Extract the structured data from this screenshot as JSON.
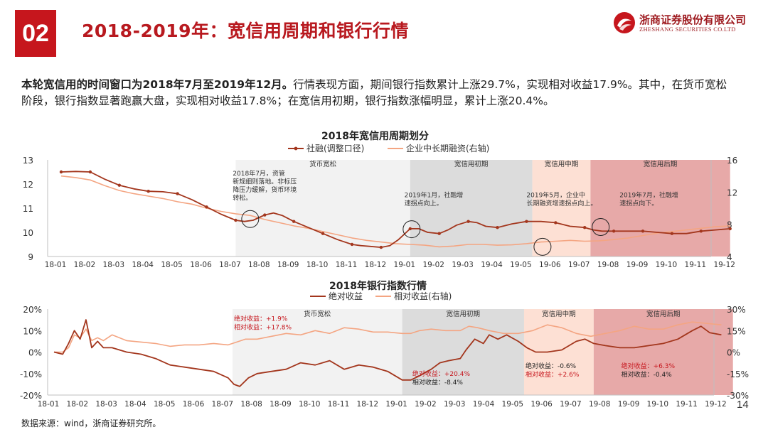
{
  "header": {
    "section_number": "02",
    "title": "2018-2019年：宽信用周期和银行行情",
    "logo_cn": "浙商证券股份有限公司",
    "logo_en": "ZHESHANG SECURITIES CO.LTD"
  },
  "summary": {
    "lead": "本轮宽信用的时间窗口为2018年7月至2019年12月。",
    "body": "行情表现方面，期间银行指数累计上涨29.7%，实现相对收益17.9%。其中，在货币宽松阶段，银行指数显著跑赢大盘，实现相对收益17.8%；在宽信用初期，银行指数涨幅明显，累计上涨20.4%。"
  },
  "colors": {
    "primary_series": "#a3361d",
    "secondary_series": "#f4a582",
    "brand_red": "#c6161d",
    "phase_easing": "#f2f2f2",
    "phase_early": "#dcdcdc",
    "phase_mid": "#fde0d4",
    "phase_late": "#e7a9a8"
  },
  "footer": {
    "source": "数据来源：wind，浙商证券研究所。",
    "page_number": "14"
  },
  "chart_data": [
    {
      "type": "line",
      "title": "2018年宽信用周期划分",
      "x_ticks": [
        "18-01",
        "18-02",
        "18-03",
        "18-04",
        "18-05",
        "18-06",
        "18-07",
        "18-08",
        "18-09",
        "18-10",
        "18-11",
        "18-12",
        "19-01",
        "19-02",
        "19-03",
        "19-04",
        "19-05",
        "19-06",
        "19-07",
        "19-08",
        "19-09",
        "19-10",
        "19-11",
        "19-12"
      ],
      "ylim": [
        9,
        13
      ],
      "yticks": [
        9,
        10,
        11,
        12,
        13
      ],
      "y2lim": [
        4,
        16
      ],
      "y2ticks": [
        4,
        8,
        12,
        16
      ],
      "grid": false,
      "legend_position": "top",
      "series": [
        {
          "name": "社融(调整口径)",
          "axis": "left",
          "markers": true,
          "x": [
            0,
            0.5,
            1,
            1.5,
            2,
            2.5,
            3,
            3.5,
            4,
            4.5,
            5,
            5.5,
            6,
            6.3,
            6.6,
            7,
            7.3,
            7.6,
            8,
            8.5,
            9,
            9.5,
            10,
            10.3,
            10.6,
            11,
            11.3,
            11.6,
            12,
            12.3,
            12.6,
            13,
            13.3,
            13.6,
            14,
            14.3,
            14.6,
            15,
            15.5,
            16,
            16.5,
            17,
            17.5,
            18,
            18.3,
            18.6,
            19,
            19.5,
            20,
            20.5,
            21,
            21.5,
            22,
            22.5,
            23
          ],
          "values": [
            12.5,
            12.52,
            12.5,
            12.2,
            11.95,
            11.8,
            11.7,
            11.68,
            11.6,
            11.35,
            11.05,
            10.75,
            10.5,
            10.45,
            10.5,
            10.72,
            10.8,
            10.7,
            10.45,
            10.2,
            9.95,
            9.7,
            9.5,
            9.45,
            9.42,
            9.38,
            9.45,
            9.7,
            10.15,
            10.15,
            10.0,
            9.95,
            10.1,
            10.3,
            10.45,
            10.4,
            10.25,
            10.2,
            10.35,
            10.45,
            10.45,
            10.4,
            10.25,
            10.2,
            10.1,
            10.05,
            10.05,
            10.05,
            10.05,
            10.0,
            9.95,
            9.95,
            10.05,
            10.1,
            10.15
          ]
        },
        {
          "name": "企业中长期融资(右轴)",
          "axis": "right",
          "markers": false,
          "x": [
            0,
            0.5,
            1,
            1.5,
            2,
            2.5,
            3,
            3.5,
            4,
            4.5,
            5,
            5.5,
            6,
            6.5,
            7,
            7.5,
            8,
            8.5,
            9,
            9.5,
            10,
            10.5,
            11,
            11.5,
            12,
            12.5,
            13,
            13.5,
            14,
            14.5,
            15,
            15.5,
            16,
            16.5,
            17,
            17.5,
            18,
            18.5,
            19,
            19.5,
            20,
            20.5,
            21,
            21.5,
            22,
            22.5,
            23
          ],
          "values": [
            14.0,
            13.8,
            13.5,
            12.8,
            12.2,
            11.8,
            11.5,
            11.2,
            10.8,
            10.5,
            10.0,
            9.6,
            9.3,
            9.1,
            8.6,
            8.2,
            7.8,
            7.5,
            7.1,
            6.7,
            6.3,
            6.0,
            5.8,
            5.6,
            5.5,
            5.4,
            5.2,
            5.3,
            5.5,
            5.5,
            5.4,
            5.45,
            5.6,
            5.8,
            5.9,
            6.0,
            5.9,
            5.95,
            6.1,
            6.3,
            6.6,
            6.9,
            7.1,
            7.3,
            7.5,
            7.7,
            7.8
          ]
        }
      ],
      "phases": [
        {
          "label": "货币宽松",
          "from": 6,
          "to": 12
        },
        {
          "label": "宽信用初期",
          "from": 12,
          "to": 16.2
        },
        {
          "label": "宽信用中期",
          "from": 16.2,
          "to": 18.2
        },
        {
          "label": "宽信用后期",
          "from": 18.2,
          "to": 23
        }
      ],
      "annotations": [
        {
          "text": "2018年7月，资管新规细则落地。非标压降压力缓解，货币环境转松。",
          "x": 5.9,
          "y": 12.35
        },
        {
          "text": "2019年1月，社融增速拐点向上。",
          "x": 11.8,
          "y": 11.45
        },
        {
          "text": "2019年5月，企业中长期融资增速拐点向上。",
          "x": 16.0,
          "y": 11.45
        },
        {
          "text": "2019年7月，社融增速拐点向下。",
          "x": 19.2,
          "y": 11.45
        }
      ],
      "highlight_circles": [
        {
          "x": 6.5,
          "y": 10.55,
          "axis": "left"
        },
        {
          "x": 12.05,
          "y": 10.13,
          "axis": "left"
        },
        {
          "x": 16.55,
          "y": 9.4,
          "axis": "left"
        },
        {
          "x": 18.55,
          "y": 10.22,
          "axis": "left"
        }
      ]
    },
    {
      "type": "line",
      "title": "2018年银行指数行情",
      "x_ticks": [
        "18-01",
        "18-02",
        "18-03",
        "18-04",
        "18-05",
        "18-06",
        "18-07",
        "18-08",
        "18-09",
        "18-10",
        "18-11",
        "18-12",
        "19-01",
        "19-02",
        "19-03",
        "19-04",
        "19-05",
        "19-06",
        "19-07",
        "19-08",
        "19-09",
        "19-10",
        "19-11",
        "19-12"
      ],
      "ylim": [
        -20,
        20
      ],
      "ytick_labels": [
        "20%",
        "10%",
        "0%",
        "-10%",
        "-20%"
      ],
      "y2lim": [
        -30,
        30
      ],
      "y2tick_labels": [
        "30%",
        "15%",
        "0%",
        "-15%",
        "-30%"
      ],
      "grid": false,
      "legend_position": "top",
      "series": [
        {
          "name": "绝对收益",
          "axis": "left",
          "x": [
            0,
            0.3,
            0.5,
            0.7,
            0.9,
            1.1,
            1.3,
            1.5,
            1.7,
            2,
            2.5,
            3,
            3.5,
            4,
            4.5,
            5,
            5.5,
            6,
            6.2,
            6.4,
            6.7,
            7,
            7.5,
            8,
            8.5,
            9,
            9.5,
            10,
            10.5,
            11,
            11.5,
            12,
            12.3,
            12.6,
            13,
            13.3,
            13.6,
            14,
            14.2,
            14.5,
            14.8,
            15,
            15.3,
            15.6,
            16,
            16.3,
            16.6,
            17,
            17.5,
            18,
            18.3,
            18.6,
            19,
            19.5,
            20,
            20.5,
            21,
            21.5,
            22,
            22.3,
            22.6,
            23
          ],
          "values": [
            0,
            -1,
            4,
            10,
            6,
            15,
            2,
            5,
            2,
            2,
            0,
            -1,
            -3,
            -6,
            -7,
            -8,
            -9,
            -12,
            -15,
            -16,
            -12,
            -10,
            -9,
            -8,
            -5,
            -6,
            -4,
            -8,
            -6,
            -7,
            -9,
            -13,
            -13,
            -11,
            -8,
            -5,
            -4,
            -3,
            1,
            6,
            4,
            8,
            6,
            8,
            5,
            2,
            0,
            0,
            1,
            5,
            6,
            4,
            3,
            2,
            2,
            3,
            4,
            6,
            10,
            12,
            9,
            8
          ]
        },
        {
          "name": "相对收益(右轴)",
          "axis": "right",
          "x": [
            0,
            0.3,
            0.5,
            0.7,
            0.9,
            1.1,
            1.3,
            1.5,
            1.7,
            2,
            2.5,
            3,
            3.5,
            4,
            4.5,
            5,
            5.5,
            6,
            6.3,
            6.6,
            7,
            7.5,
            8,
            8.5,
            9,
            9.5,
            10,
            10.5,
            11,
            11.5,
            12,
            12.3,
            12.6,
            13,
            13.5,
            14,
            14.3,
            14.6,
            15,
            15.5,
            16,
            16.5,
            17,
            17.5,
            18,
            18.5,
            19,
            19.5,
            20,
            20.5,
            21,
            21.5,
            22,
            22.5,
            23
          ],
          "values": [
            0,
            0,
            3,
            12,
            10,
            16,
            8,
            10,
            8,
            12,
            8,
            7,
            6,
            4,
            5,
            5,
            6,
            5,
            7,
            9,
            9,
            11,
            13,
            12,
            15,
            13,
            17,
            16,
            14,
            14,
            13,
            13,
            15,
            16,
            15,
            15,
            18,
            17,
            15,
            13,
            13,
            15,
            19,
            17,
            13,
            11,
            13,
            15,
            18,
            16,
            16,
            19,
            21,
            20,
            19
          ]
        }
      ],
      "phases": [
        {
          "label": "货币宽松",
          "from": 6.15,
          "to": 12
        },
        {
          "label": "宽信用初期",
          "from": 12,
          "to": 16.2
        },
        {
          "label": "宽信用中期",
          "from": 16.2,
          "to": 18.6
        },
        {
          "label": "宽信用后期",
          "from": 18.6,
          "to": 23.4
        }
      ],
      "annotations": [
        {
          "lines": [
            {
              "text": "绝对收益：+1.9%",
              "color": "#c6161d"
            },
            {
              "text": "相对收益：+17.8%",
              "color": "#c6161d"
            }
          ],
          "x": 6.2,
          "y": 14.6
        },
        {
          "lines": [
            {
              "text": "绝对收益：+20.4%",
              "color": "#c6161d"
            },
            {
              "text": "相对收益：-8.4%",
              "color": "#222222"
            }
          ],
          "x": 12.35,
          "y": -11
        },
        {
          "lines": [
            {
              "text": "绝对收益：-0.6%",
              "color": "#222222"
            },
            {
              "text": "相对收益：+2.6%",
              "color": "#c6161d"
            }
          ],
          "x": 16.25,
          "y": -7.5
        },
        {
          "lines": [
            {
              "text": "绝对收益：+6.3%",
              "color": "#c6161d"
            },
            {
              "text": "相对收益：-0.4%",
              "color": "#222222"
            }
          ],
          "x": 19.55,
          "y": -7.5
        }
      ]
    }
  ]
}
